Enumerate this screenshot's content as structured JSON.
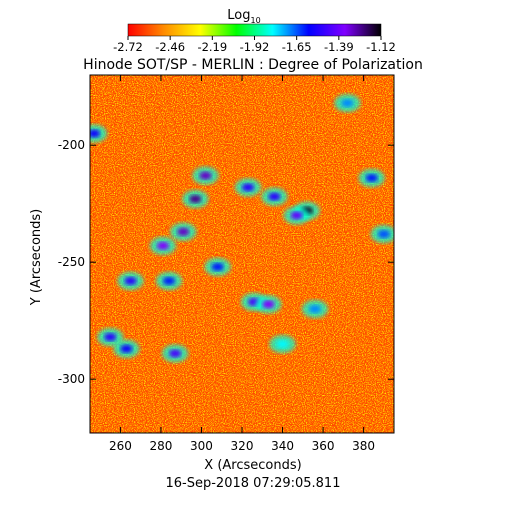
{
  "chart_data": {
    "type": "heatmap",
    "title": "Hinode SOT/SP - MERLIN : Degree of Polarization",
    "subtitle": "16-Sep-2018 07:29:05.811",
    "xlabel": "X (Arcseconds)",
    "ylabel": "Y (Arcseconds)",
    "xlim": [
      245,
      395
    ],
    "ylim": [
      -323,
      -170
    ],
    "xticks": [
      260,
      280,
      300,
      320,
      340,
      360,
      380
    ],
    "yticks": [
      -200,
      -250,
      -300
    ],
    "colorbar": {
      "label_base": "Log",
      "label_sub": "10",
      "range": [
        -2.72,
        -1.12
      ],
      "ticks": [
        "-2.72",
        "-2.46",
        "-2.19",
        "-1.92",
        "-1.65",
        "-1.39",
        "-1.12"
      ],
      "colormap": [
        "#ff0000",
        "#ff8c00",
        "#ffff00",
        "#00ff00",
        "#00ffff",
        "#0000ff",
        "#8000ff",
        "#000000"
      ]
    },
    "background_level": -2.6,
    "features": [
      {
        "x": 297,
        "y": -223,
        "level": -1.25
      },
      {
        "x": 291,
        "y": -237,
        "level": -1.3
      },
      {
        "x": 281,
        "y": -243,
        "level": -1.35
      },
      {
        "x": 302,
        "y": -213,
        "level": -1.3
      },
      {
        "x": 352,
        "y": -228,
        "level": -1.15
      },
      {
        "x": 347,
        "y": -230,
        "level": -1.4
      },
      {
        "x": 336,
        "y": -222,
        "level": -1.5
      },
      {
        "x": 323,
        "y": -218,
        "level": -1.5
      },
      {
        "x": 326,
        "y": -267,
        "level": -1.45
      },
      {
        "x": 333,
        "y": -268,
        "level": -1.35
      },
      {
        "x": 308,
        "y": -252,
        "level": -1.6
      },
      {
        "x": 284,
        "y": -258,
        "level": -1.6
      },
      {
        "x": 265,
        "y": -258,
        "level": -1.5
      },
      {
        "x": 255,
        "y": -282,
        "level": -1.5
      },
      {
        "x": 263,
        "y": -287,
        "level": -1.55
      },
      {
        "x": 287,
        "y": -289,
        "level": -1.45
      },
      {
        "x": 247,
        "y": -195,
        "level": -1.55
      },
      {
        "x": 384,
        "y": -214,
        "level": -1.6
      },
      {
        "x": 390,
        "y": -238,
        "level": -1.65
      },
      {
        "x": 356,
        "y": -270,
        "level": -1.7
      },
      {
        "x": 372,
        "y": -182,
        "level": -1.7
      },
      {
        "x": 340,
        "y": -285,
        "level": -1.8
      }
    ]
  }
}
